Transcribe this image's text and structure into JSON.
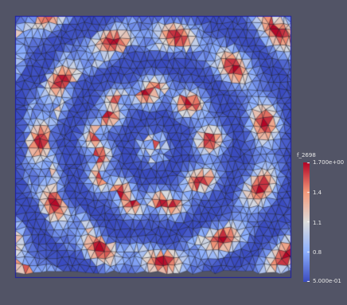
{
  "viewport": {
    "background_color": "#525466",
    "mesh_line_color": "#1c1c22",
    "domain_border_color": "#1a1aa8"
  },
  "colorbar": {
    "title": "f_2698",
    "colormap": [
      "#3b4cc0",
      "#8db0fe",
      "#dddddd",
      "#f49a7b",
      "#b40426"
    ],
    "range": [
      0.5,
      1.7
    ],
    "ticks": [
      {
        "value": 1.7,
        "label": "1.700e+00"
      },
      {
        "value": 1.4,
        "label": "1.4"
      },
      {
        "value": 1.1,
        "label": "1.1"
      },
      {
        "value": 0.8,
        "label": "0.8"
      },
      {
        "value": 0.5,
        "label": "5.000e-01"
      }
    ]
  }
}
